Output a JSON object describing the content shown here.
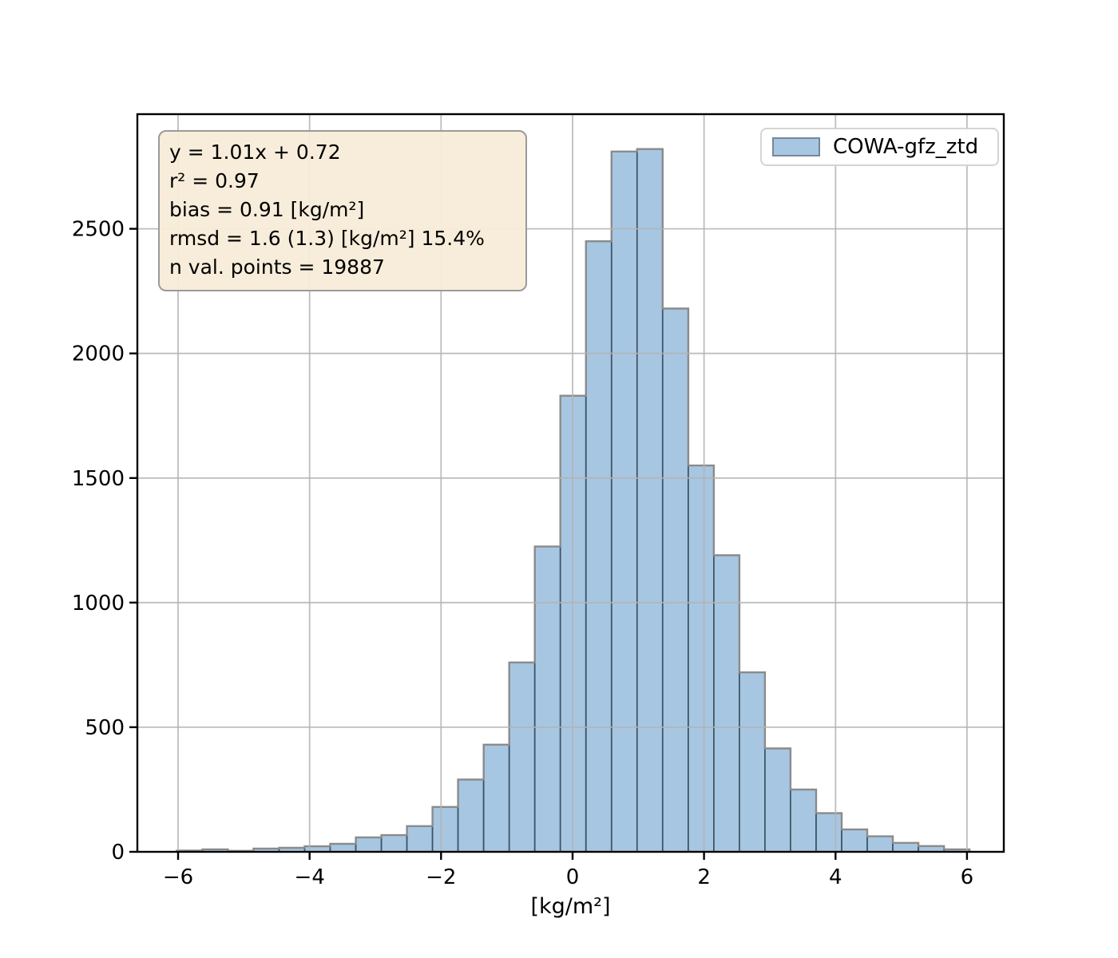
{
  "chart_data": {
    "type": "bar",
    "subtype": "histogram",
    "title": "",
    "xlabel": "[kg/m²]",
    "ylabel": "",
    "legend_label": "COWA-gfz_ztd",
    "legend_position": "upper right",
    "grid": true,
    "xlim": [
      -6.62,
      6.56
    ],
    "ylim": [
      0,
      2960
    ],
    "x_tick_values": [
      -6,
      -4,
      -2,
      0,
      2,
      4,
      6
    ],
    "x_tick_labels": [
      "−6",
      "−4",
      "−2",
      "0",
      "2",
      "4",
      "6"
    ],
    "y_tick_values": [
      0,
      500,
      1000,
      1500,
      2000,
      2500
    ],
    "y_tick_labels": [
      "0",
      "500",
      "1000",
      "1500",
      "2000",
      "2500"
    ],
    "bins": {
      "start": -6.02,
      "width": 0.389,
      "n": 31
    },
    "counts": [
      5,
      10,
      4,
      13,
      16,
      22,
      32,
      58,
      67,
      103,
      180,
      290,
      430,
      760,
      1225,
      1830,
      2450,
      2810,
      2820,
      2180,
      1550,
      1190,
      720,
      415,
      250,
      155,
      90,
      62,
      36,
      23,
      10
    ],
    "annotation_lines": [
      "y = 1.01x + 0.72",
      "r² = 0.97",
      "bias = 0.91 [kg/m²]",
      "rmsd = 1.6 (1.3) [kg/m²] 15.4%",
      "n val. points = 19887"
    ]
  },
  "colors": {
    "bar_fill": "#a7c6e1",
    "bar_edge": "#3d5366",
    "step_outline": "#8b8b8b",
    "grid": "#b3b3b3",
    "axis": "#000000",
    "annotation_bg": "#f7ecd8",
    "annotation_border": "#9a9a9a",
    "legend_border": "#d4d4d4",
    "legend_bg": "#ffffff",
    "text": "#000000"
  }
}
